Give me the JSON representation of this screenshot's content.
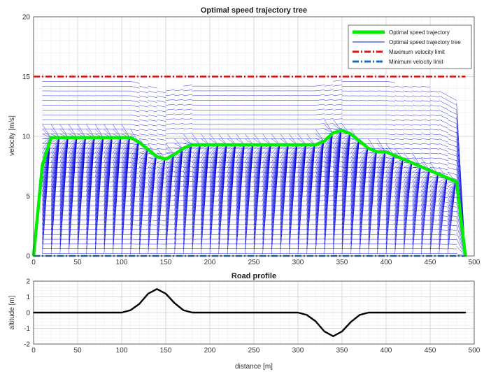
{
  "chart_data": [
    {
      "type": "line",
      "title": "Optimal speed trajectory tree",
      "xlabel": "",
      "ylabel": "velocity [m/s]",
      "xlim": [
        0,
        500
      ],
      "ylim": [
        0,
        20
      ],
      "xticks": [
        0,
        50,
        100,
        150,
        200,
        250,
        300,
        350,
        400,
        450,
        500
      ],
      "yticks": [
        0,
        5,
        10,
        15,
        20
      ],
      "grid": "major-and-minor",
      "legend_position": "top-right",
      "series": [
        {
          "name": "Optimal speed trajectory",
          "color": "#00ee00",
          "style": "solid-thick",
          "x": [
            0,
            10,
            20,
            110,
            120,
            140,
            150,
            160,
            170,
            180,
            320,
            330,
            340,
            350,
            360,
            370,
            380,
            390,
            400,
            480,
            490
          ],
          "y": [
            0,
            7.6,
            9.9,
            9.9,
            9.5,
            8.3,
            8.1,
            8.5,
            9.0,
            9.3,
            9.3,
            9.6,
            10.3,
            10.5,
            10.2,
            9.6,
            9.0,
            8.7,
            8.7,
            6.2,
            0
          ]
        },
        {
          "name": "Optimal speed trajectory tree",
          "color": "#1010e0",
          "style": "solid-thin",
          "level_spacing": 0.2,
          "stage_spacing": 10,
          "envelope_x": [
            10,
            20,
            110,
            150,
            180,
            320,
            350,
            400,
            460,
            480,
            490
          ],
          "envelope_y": [
            14.8,
            14.8,
            14.7,
            14.0,
            14.3,
            14.4,
            14.7,
            14.6,
            14.0,
            13.2,
            0
          ]
        },
        {
          "name": "Maximum velocity limit",
          "color": "#dd1111",
          "style": "dash-dot",
          "x": [
            0,
            490
          ],
          "y": [
            15,
            15
          ]
        },
        {
          "name": "Minimum velocity limit",
          "color": "#1a6fb8",
          "style": "dash-dot",
          "x": [
            0,
            490
          ],
          "y": [
            0,
            0
          ]
        }
      ]
    },
    {
      "type": "line",
      "title": "Road profile",
      "xlabel": "distance [m]",
      "ylabel": "altitude [m]",
      "xlim": [
        0,
        500
      ],
      "ylim": [
        -2,
        2
      ],
      "xticks": [
        0,
        50,
        100,
        150,
        200,
        250,
        300,
        350,
        400,
        450,
        500
      ],
      "yticks": [
        -2,
        -1,
        0,
        1,
        2
      ],
      "grid": "major-and-minor",
      "series": [
        {
          "color": "#000000",
          "x": [
            0,
            100,
            110,
            120,
            130,
            140,
            150,
            160,
            170,
            180,
            300,
            310,
            320,
            330,
            340,
            350,
            360,
            370,
            380,
            490
          ],
          "y": [
            0,
            0,
            0.15,
            0.55,
            1.2,
            1.5,
            1.2,
            0.6,
            0.15,
            0,
            0,
            -0.15,
            -0.55,
            -1.2,
            -1.5,
            -1.2,
            -0.6,
            -0.15,
            0,
            0
          ]
        }
      ]
    }
  ]
}
